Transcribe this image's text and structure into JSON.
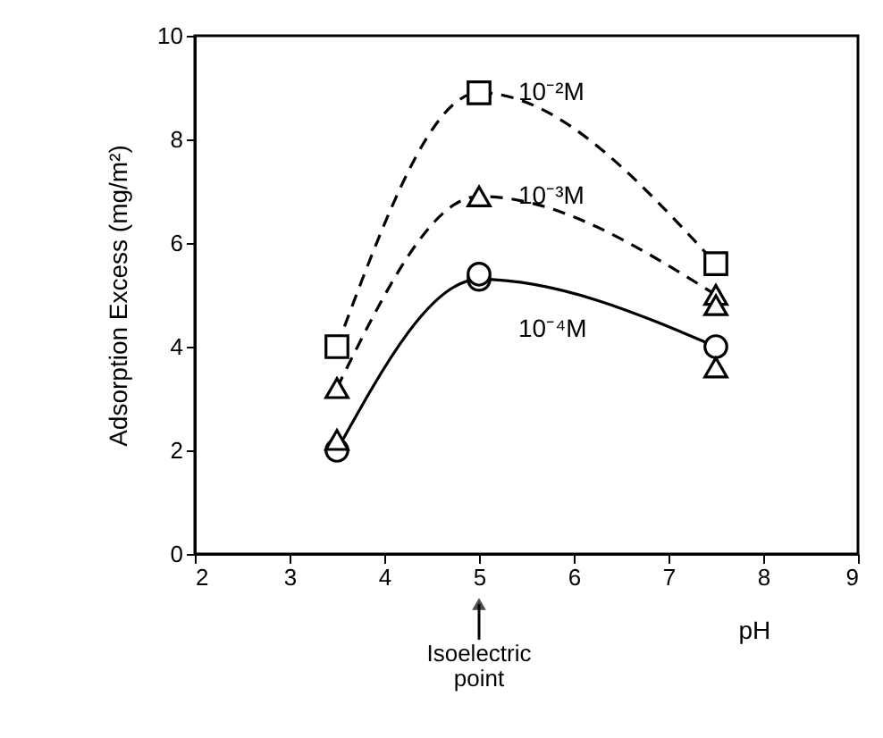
{
  "chart_data": {
    "type": "line",
    "xlabel": "pH",
    "ylabel": "Adsorption  Excess  (mg/m²)",
    "xlim": [
      2,
      9
    ],
    "xticks": [
      2,
      3,
      4,
      5,
      6,
      7,
      8,
      9
    ],
    "ylim": [
      0,
      10
    ],
    "yticks": [
      0,
      2,
      4,
      6,
      8,
      10
    ],
    "grid": false,
    "series": [
      {
        "name": "10⁻²M",
        "color": "#000000",
        "x": [
          3.5,
          5,
          7.5
        ],
        "values": [
          4.0,
          8.9,
          5.6
        ],
        "marker": "square",
        "line_style": "dashed"
      },
      {
        "name": "10⁻³M",
        "color": "#000000",
        "x": [
          3.5,
          5,
          7.5
        ],
        "values": [
          3.2,
          6.9,
          5.0
        ],
        "marker": "triangle",
        "line_style": "dashed"
      },
      {
        "name": "10⁻⁴M",
        "color": "#000000",
        "x": [
          3.5,
          5,
          7.5
        ],
        "values": [
          2.0,
          5.3,
          4.0
        ],
        "marker": "circle",
        "line_style": "solid"
      },
      {
        "type": "scatter",
        "color": "#000000",
        "x": [
          3.5,
          7.5,
          7.5
        ],
        "values": [
          2.2,
          3.6,
          4.8
        ],
        "marker": "triangle"
      },
      {
        "type": "scatter",
        "color": "#000000",
        "x": [
          5
        ],
        "values": [
          5.4
        ],
        "marker": "circle"
      }
    ],
    "annotations": [
      "Isoelectric\npoint"
    ]
  }
}
